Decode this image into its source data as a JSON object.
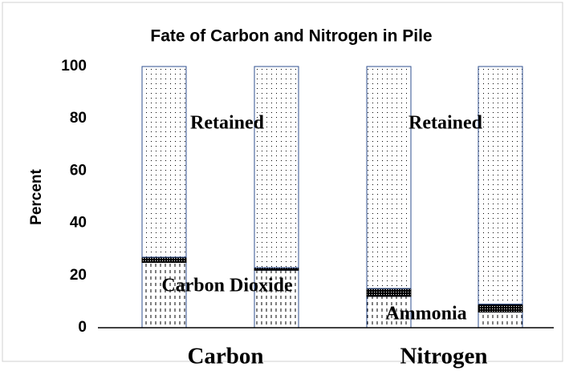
{
  "chart_data": {
    "type": "stacked-bar",
    "title": "Fate of Carbon and Nitrogen in Pile",
    "y_label": "Percent",
    "categories": [
      null,
      null,
      null,
      null
    ],
    "groups": [
      "Carbon",
      "Nitrogen"
    ],
    "series": [
      {
        "color": "#000000",
        "pattern": "dashes",
        "values": [
          25,
          22,
          12,
          6
        ]
      },
      {
        "color": "#000000",
        "pattern": "crosshatch",
        "values": [
          2,
          1,
          3,
          3
        ]
      },
      {
        "color": "#000000",
        "pattern": "dots",
        "values": [
          73,
          77,
          85,
          91
        ]
      }
    ],
    "annotations": [
      "Retained",
      "Retained",
      "Carbon Dioxide",
      "Ammonia"
    ],
    "ylim": [
      0,
      100
    ],
    "yticks": [
      0,
      20,
      40,
      60,
      80,
      100
    ],
    "grid": false
  }
}
